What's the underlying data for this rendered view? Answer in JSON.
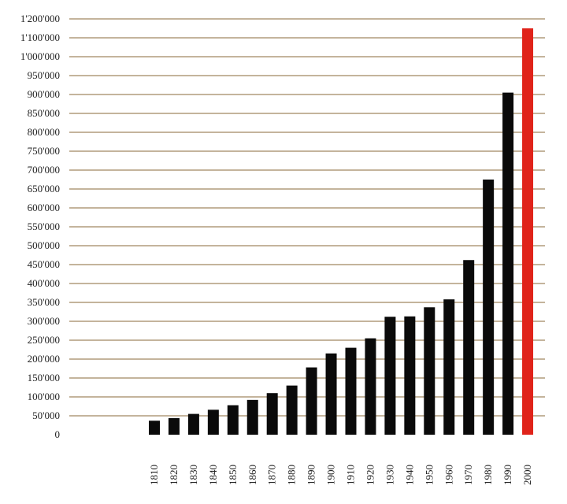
{
  "chart_data": {
    "type": "bar",
    "title": "",
    "xlabel": "",
    "ylabel": "",
    "categories": [
      "1810",
      "1820",
      "1830",
      "1840",
      "1850",
      "1860",
      "1870",
      "1880",
      "1890",
      "1900",
      "1910",
      "1920",
      "1930",
      "1940",
      "1950",
      "1960",
      "1970",
      "1980",
      "1990",
      "2000"
    ],
    "values": [
      37000,
      44000,
      55000,
      66000,
      78000,
      92000,
      110000,
      130000,
      178000,
      215000,
      230000,
      255000,
      312000,
      313000,
      337000,
      358000,
      462000,
      675000,
      905000,
      1150000
    ],
    "ylim": [
      0,
      1200000
    ],
    "yticks": [
      0,
      50000,
      100000,
      150000,
      200000,
      250000,
      300000,
      350000,
      400000,
      450000,
      500000,
      550000,
      600000,
      650000,
      700000,
      750000,
      800000,
      850000,
      900000,
      950000,
      1000000,
      1100000,
      1200000
    ],
    "ytick_labels": [
      "0",
      "50'000",
      "100'000",
      "150'000",
      "200'000",
      "250'000",
      "300'000",
      "350'000",
      "400'000",
      "450'000",
      "500'000",
      "550'000",
      "600'000",
      "650'000",
      "700'000",
      "750'000",
      "800'000",
      "850'000",
      "900'000",
      "950'000",
      "1'000'000",
      "1'100'000",
      "1'200'000"
    ],
    "grid": true,
    "colors": {
      "bar": "#0a0a0a",
      "highlight_bar": "#e0231a",
      "gridline": "#8a6a3a"
    },
    "highlight_category": "2000"
  }
}
